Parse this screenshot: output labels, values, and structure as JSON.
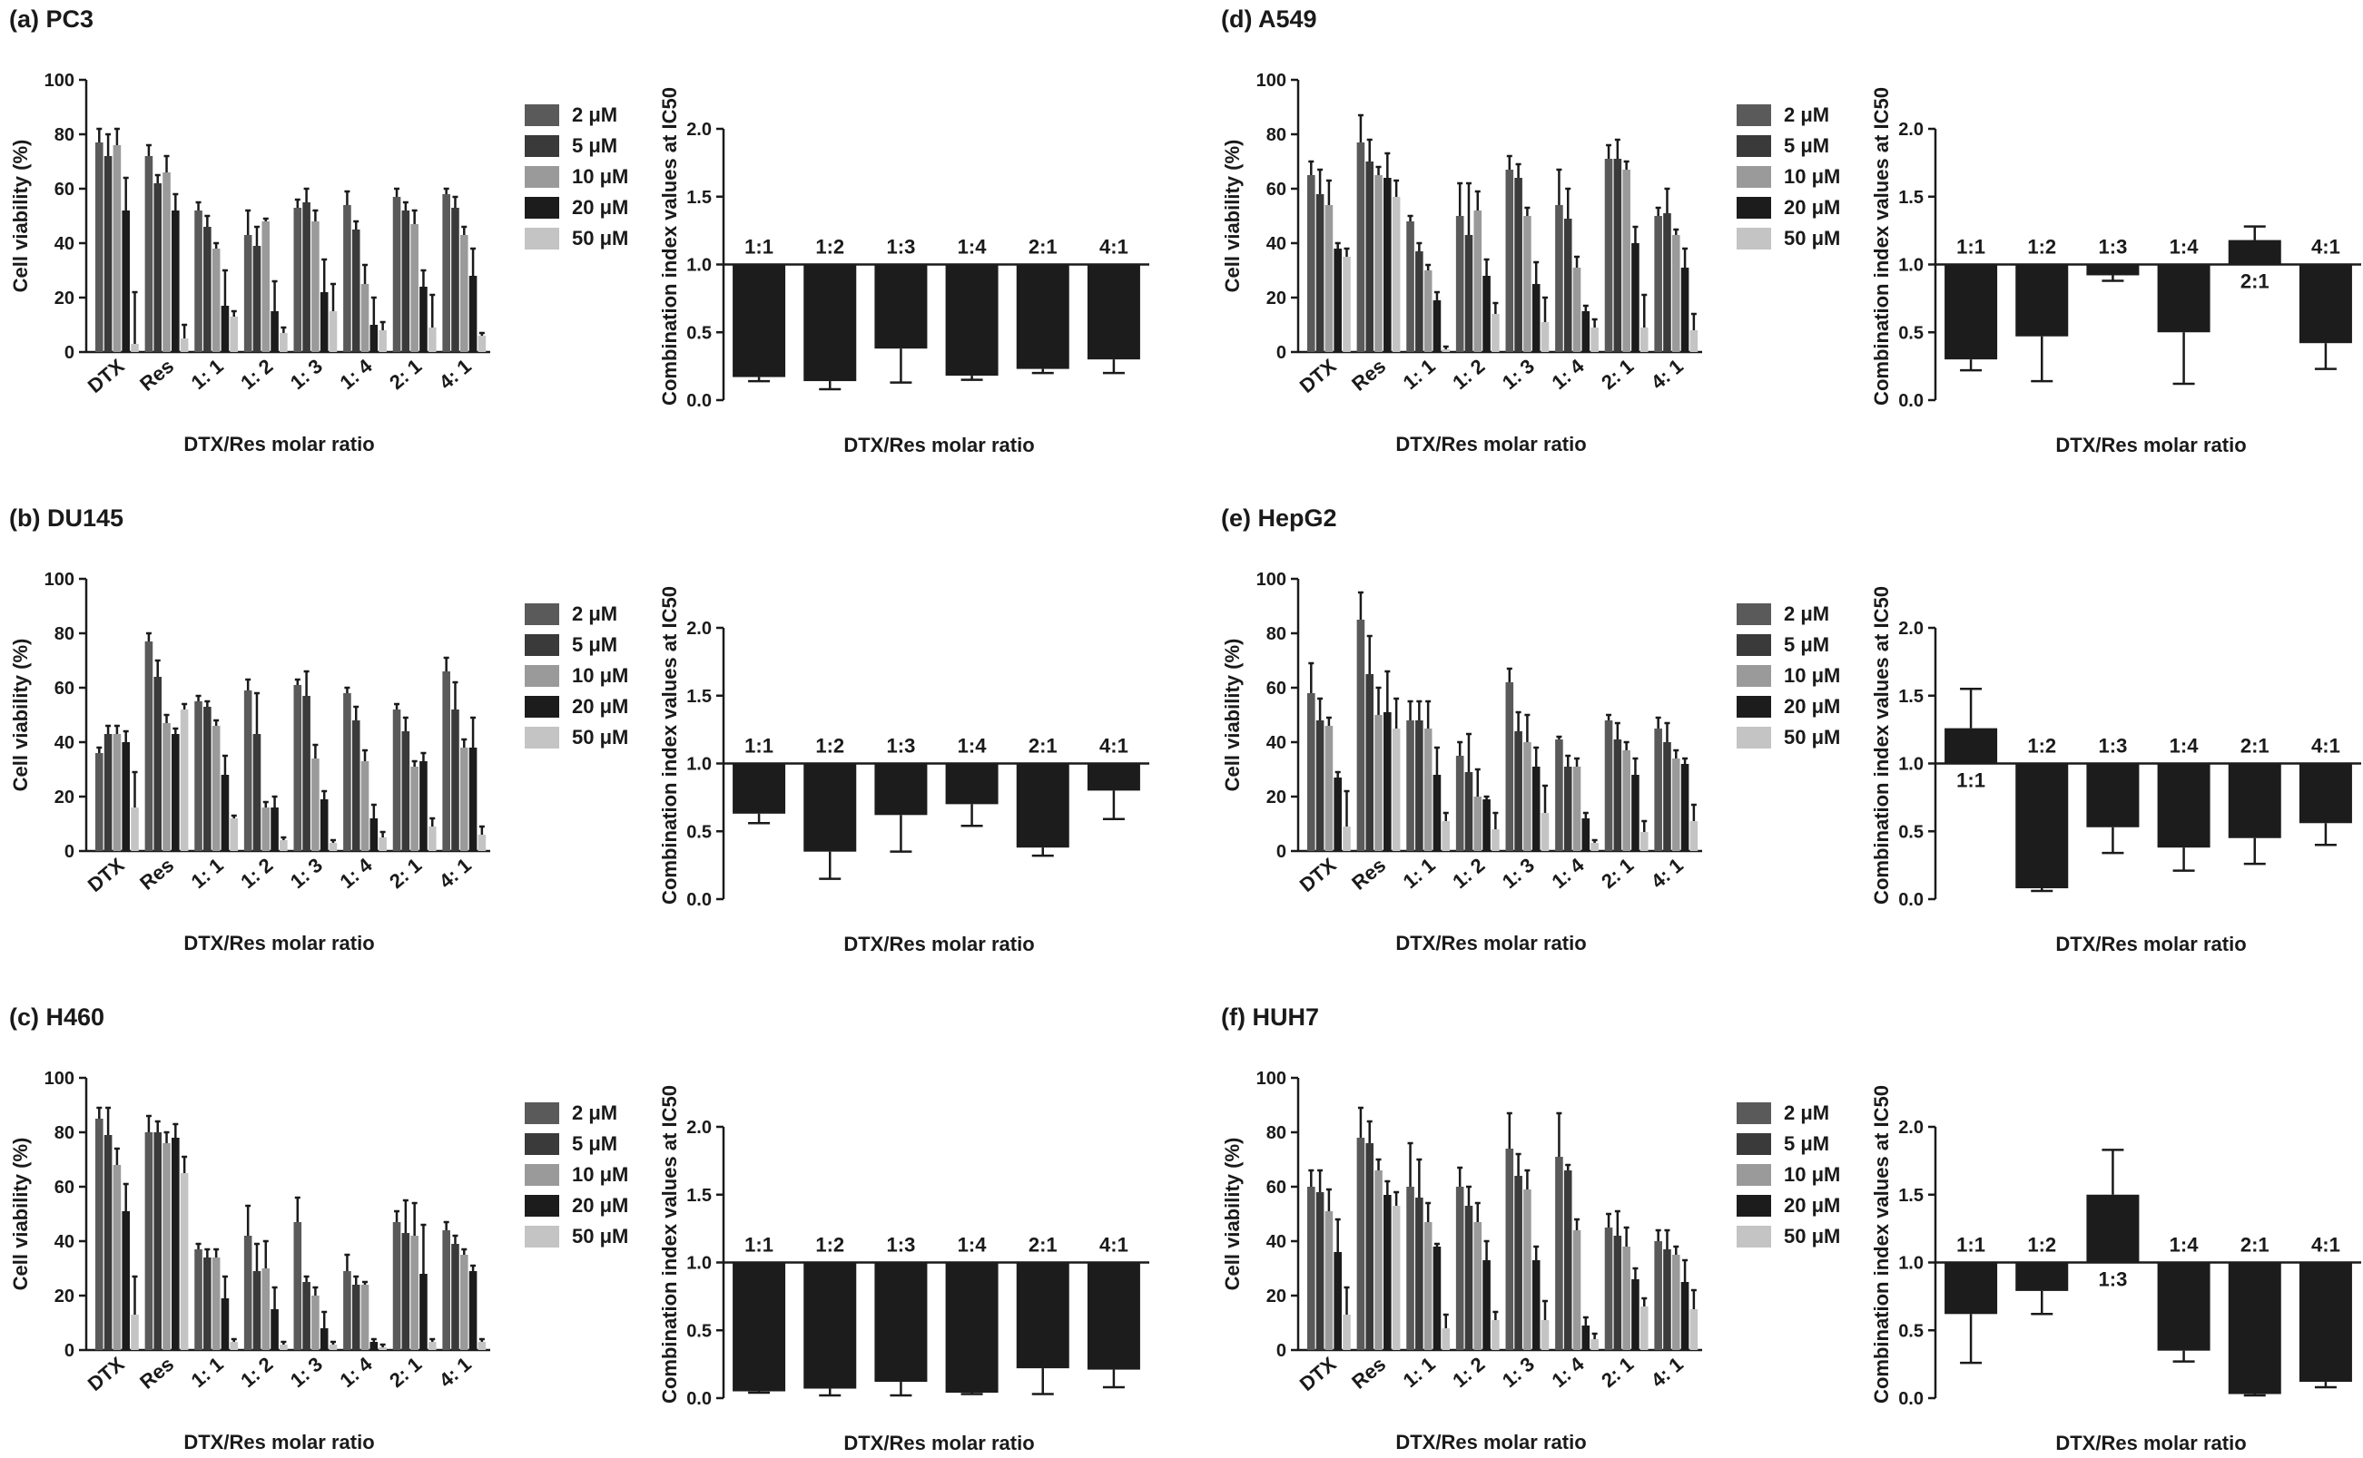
{
  "figure": {
    "series_names": [
      "2 μM",
      "5 μM",
      "10 μM",
      "20 μM",
      "50 μM"
    ],
    "series_colors": [
      "#5a5a5a",
      "#3a3a3a",
      "#9a9a9a",
      "#1c1c1c",
      "#c4c4c4"
    ],
    "ci_bar_color": "#1c1c1c"
  },
  "chart_data": [
    {
      "id": "PC3-viability",
      "type": "bar",
      "title": "(a) PC3",
      "xlabel": "DTX/Res molar ratio",
      "ylabel": "Cell viability (%)",
      "ylim": [
        0,
        100
      ],
      "yticks": [
        0,
        20,
        40,
        60,
        80,
        100
      ],
      "categories": [
        "DTX",
        "Res",
        "1: 1",
        "1: 2",
        "1: 3",
        "1: 4",
        "2: 1",
        "4: 1"
      ],
      "legend": "right",
      "series": [
        {
          "name": "2 μM",
          "values": [
            77,
            72,
            52,
            43,
            53,
            54,
            57,
            58
          ],
          "errors": [
            5,
            4,
            3,
            9,
            3,
            5,
            3,
            2
          ]
        },
        {
          "name": "5 μM",
          "values": [
            72,
            62,
            46,
            39,
            55,
            45,
            52,
            53
          ],
          "errors": [
            8,
            3,
            4,
            7,
            5,
            3,
            3,
            4
          ]
        },
        {
          "name": "10 μM",
          "values": [
            76,
            66,
            38,
            48,
            48,
            25,
            47,
            43
          ],
          "errors": [
            6,
            6,
            2,
            1,
            4,
            7,
            5,
            3
          ]
        },
        {
          "name": "20 μM",
          "values": [
            52,
            52,
            17,
            15,
            22,
            10,
            24,
            28
          ],
          "errors": [
            12,
            6,
            13,
            11,
            12,
            10,
            6,
            10
          ]
        },
        {
          "name": "50 μM",
          "values": [
            3,
            5,
            13,
            7,
            15,
            8,
            9,
            6
          ],
          "errors": [
            19,
            5,
            2,
            2,
            10,
            3,
            12,
            1
          ]
        }
      ]
    },
    {
      "id": "PC3-ci",
      "type": "bar",
      "xlabel": "DTX/Res molar ratio",
      "ylabel": "Combination index values at IC50",
      "ylim": [
        0,
        2
      ],
      "yticks": [
        0.0,
        0.5,
        1.0,
        1.5,
        2.0
      ],
      "baseline": 1.0,
      "categories": [
        "1:1",
        "1:2",
        "1:3",
        "1:4",
        "2:1",
        "4:1"
      ],
      "values": [
        0.17,
        0.14,
        0.38,
        0.18,
        0.23,
        0.3
      ],
      "errors": [
        0.03,
        0.06,
        0.25,
        0.03,
        0.03,
        0.1
      ]
    },
    {
      "id": "DU145-viability",
      "type": "bar",
      "title": "(b) DU145",
      "xlabel": "DTX/Res molar ratio",
      "ylabel": "Cell viability (%)",
      "ylim": [
        0,
        100
      ],
      "yticks": [
        0,
        20,
        40,
        60,
        80,
        100
      ],
      "categories": [
        "DTX",
        "Res",
        "1: 1",
        "1: 2",
        "1: 3",
        "1: 4",
        "2: 1",
        "4: 1"
      ],
      "legend": "right",
      "series": [
        {
          "name": "2 μM",
          "values": [
            36,
            77,
            55,
            59,
            61,
            58,
            52,
            66
          ],
          "errors": [
            2,
            3,
            2,
            4,
            2,
            2,
            2,
            5
          ]
        },
        {
          "name": "5 μM",
          "values": [
            43,
            64,
            53,
            43,
            57,
            48,
            44,
            52
          ],
          "errors": [
            3,
            6,
            2,
            15,
            9,
            5,
            5,
            10
          ]
        },
        {
          "name": "10 μM",
          "values": [
            43,
            47,
            46,
            16,
            34,
            33,
            31,
            38
          ],
          "errors": [
            3,
            3,
            2,
            2,
            5,
            4,
            2,
            3
          ]
        },
        {
          "name": "20 μM",
          "values": [
            40,
            43,
            28,
            16,
            19,
            12,
            33,
            38
          ],
          "errors": [
            4,
            2,
            7,
            4,
            3,
            5,
            3,
            11
          ]
        },
        {
          "name": "50 μM",
          "values": [
            16,
            52,
            12,
            4,
            3,
            5,
            9,
            6
          ],
          "errors": [
            13,
            2,
            1,
            1,
            1,
            2,
            3,
            3
          ]
        }
      ]
    },
    {
      "id": "DU145-ci",
      "type": "bar",
      "xlabel": "DTX/Res molar ratio",
      "ylabel": "Combination index values at IC50",
      "ylim": [
        0,
        2
      ],
      "yticks": [
        0.0,
        0.5,
        1.0,
        1.5,
        2.0
      ],
      "baseline": 1.0,
      "categories": [
        "1:1",
        "1:2",
        "1:3",
        "1:4",
        "2:1",
        "4:1"
      ],
      "values": [
        0.63,
        0.35,
        0.62,
        0.7,
        0.38,
        0.8
      ],
      "errors": [
        0.07,
        0.2,
        0.27,
        0.16,
        0.06,
        0.21
      ]
    },
    {
      "id": "H460-viability",
      "type": "bar",
      "title": "(c) H460",
      "xlabel": "DTX/Res molar ratio",
      "ylabel": "Cell viability (%)",
      "ylim": [
        0,
        100
      ],
      "yticks": [
        0,
        20,
        40,
        60,
        80,
        100
      ],
      "categories": [
        "DTX",
        "Res",
        "1: 1",
        "1: 2",
        "1: 3",
        "1: 4",
        "2: 1",
        "4: 1"
      ],
      "legend": "right",
      "series": [
        {
          "name": "2 μM",
          "values": [
            85,
            80,
            37,
            42,
            47,
            29,
            47,
            44
          ],
          "errors": [
            4,
            6,
            2,
            11,
            9,
            6,
            4,
            3
          ]
        },
        {
          "name": "5 μM",
          "values": [
            79,
            80,
            34,
            29,
            25,
            24,
            43,
            39
          ],
          "errors": [
            10,
            4,
            3,
            10,
            2,
            3,
            12,
            3
          ]
        },
        {
          "name": "10 μM",
          "values": [
            68,
            76,
            34,
            30,
            20,
            24,
            42,
            35
          ],
          "errors": [
            6,
            4,
            3,
            10,
            3,
            1,
            12,
            2
          ]
        },
        {
          "name": "20 μM",
          "values": [
            51,
            78,
            19,
            15,
            8,
            3,
            28,
            29
          ],
          "errors": [
            10,
            5,
            8,
            8,
            6,
            1,
            18,
            2
          ]
        },
        {
          "name": "50 μM",
          "values": [
            13,
            65,
            3,
            2,
            2,
            1,
            3,
            3
          ],
          "errors": [
            14,
            6,
            1,
            1,
            1,
            1,
            1,
            1
          ]
        }
      ]
    },
    {
      "id": "H460-ci",
      "type": "bar",
      "xlabel": "DTX/Res molar ratio",
      "ylabel": "Combination index values at IC50",
      "ylim": [
        0,
        2
      ],
      "yticks": [
        0.0,
        0.5,
        1.0,
        1.5,
        2.0
      ],
      "baseline": 1.0,
      "categories": [
        "1:1",
        "1:2",
        "1:3",
        "1:4",
        "2:1",
        "4:1"
      ],
      "values": [
        0.05,
        0.07,
        0.12,
        0.04,
        0.22,
        0.21
      ],
      "errors": [
        0.01,
        0.05,
        0.1,
        0.01,
        0.19,
        0.13
      ]
    },
    {
      "id": "A549-viability",
      "type": "bar",
      "title": "(d) A549",
      "xlabel": "DTX/Res molar ratio",
      "ylabel": "Cell viability (%)",
      "ylim": [
        0,
        100
      ],
      "yticks": [
        0,
        20,
        40,
        60,
        80,
        100
      ],
      "categories": [
        "DTX",
        "Res",
        "1: 1",
        "1: 2",
        "1: 3",
        "1: 4",
        "2: 1",
        "4: 1"
      ],
      "legend": "right",
      "series": [
        {
          "name": "2 μM",
          "values": [
            65,
            77,
            48,
            50,
            67,
            54,
            71,
            50
          ],
          "errors": [
            5,
            10,
            2,
            12,
            5,
            13,
            5,
            3
          ]
        },
        {
          "name": "5 μM",
          "values": [
            58,
            70,
            37,
            43,
            64,
            49,
            71,
            51
          ],
          "errors": [
            9,
            8,
            3,
            19,
            5,
            11,
            7,
            9
          ]
        },
        {
          "name": "10 μM",
          "values": [
            54,
            65,
            30,
            52,
            50,
            31,
            67,
            43
          ],
          "errors": [
            9,
            3,
            2,
            7,
            3,
            4,
            3,
            2
          ]
        },
        {
          "name": "20 μM",
          "values": [
            38,
            64,
            19,
            28,
            25,
            15,
            40,
            31
          ],
          "errors": [
            2,
            9,
            3,
            6,
            8,
            2,
            6,
            7
          ]
        },
        {
          "name": "50 μM",
          "values": [
            35,
            57,
            1,
            14,
            11,
            9,
            9,
            8
          ],
          "errors": [
            3,
            6,
            1,
            4,
            9,
            3,
            12,
            6
          ]
        }
      ]
    },
    {
      "id": "A549-ci",
      "type": "bar",
      "xlabel": "DTX/Res molar ratio",
      "ylabel": "Combination index values at IC50",
      "ylim": [
        0,
        2
      ],
      "yticks": [
        0.0,
        0.5,
        1.0,
        1.5,
        2.0
      ],
      "baseline": 1.0,
      "categories": [
        "1:1",
        "1:2",
        "1:3",
        "1:4",
        "2:1",
        "4:1"
      ],
      "values": [
        0.3,
        0.47,
        0.92,
        0.5,
        1.18,
        0.42
      ],
      "errors": [
        0.08,
        0.33,
        0.04,
        0.38,
        0.1,
        0.19
      ]
    },
    {
      "id": "HepG2-viability",
      "type": "bar",
      "title": "(e) HepG2",
      "xlabel": "DTX/Res molar ratio",
      "ylabel": "Cell viability (%)",
      "ylim": [
        0,
        100
      ],
      "yticks": [
        0,
        20,
        40,
        60,
        80,
        100
      ],
      "categories": [
        "DTX",
        "Res",
        "1: 1",
        "1: 2",
        "1: 3",
        "1: 4",
        "2: 1",
        "4: 1"
      ],
      "legend": "right",
      "series": [
        {
          "name": "2 μM",
          "values": [
            58,
            85,
            48,
            35,
            62,
            41,
            48,
            45
          ],
          "errors": [
            11,
            10,
            7,
            5,
            5,
            1,
            2,
            4
          ]
        },
        {
          "name": "5 μM",
          "values": [
            48,
            65,
            48,
            29,
            44,
            31,
            41,
            40
          ],
          "errors": [
            8,
            14,
            7,
            14,
            7,
            4,
            6,
            7
          ]
        },
        {
          "name": "10 μM",
          "values": [
            46,
            50,
            45,
            20,
            40,
            31,
            37,
            34
          ],
          "errors": [
            3,
            10,
            10,
            10,
            10,
            3,
            3,
            3
          ]
        },
        {
          "name": "20 μM",
          "values": [
            27,
            51,
            28,
            19,
            31,
            12,
            28,
            32
          ],
          "errors": [
            2,
            15,
            10,
            1,
            7,
            2,
            6,
            2
          ]
        },
        {
          "name": "50 μM",
          "values": [
            9,
            45,
            11,
            8,
            14,
            3,
            7,
            11
          ],
          "errors": [
            13,
            11,
            3,
            6,
            10,
            1,
            4,
            6
          ]
        }
      ]
    },
    {
      "id": "HepG2-ci",
      "type": "bar",
      "xlabel": "DTX/Res molar ratio",
      "ylabel": "Combination index values at IC50",
      "ylim": [
        0,
        2
      ],
      "yticks": [
        0.0,
        0.5,
        1.0,
        1.5,
        2.0
      ],
      "baseline": 1.0,
      "categories": [
        "1:1",
        "1:2",
        "1:3",
        "1:4",
        "2:1",
        "4:1"
      ],
      "values": [
        1.26,
        0.08,
        0.53,
        0.38,
        0.45,
        0.56
      ],
      "errors": [
        0.29,
        0.02,
        0.19,
        0.17,
        0.19,
        0.16
      ]
    },
    {
      "id": "HUH7-viability",
      "type": "bar",
      "title": "(f) HUH7",
      "xlabel": "DTX/Res molar ratio",
      "ylabel": "Cell viability (%)",
      "ylim": [
        0,
        100
      ],
      "yticks": [
        0,
        20,
        40,
        60,
        80,
        100
      ],
      "categories": [
        "DTX",
        "Res",
        "1: 1",
        "1: 2",
        "1: 3",
        "1: 4",
        "2: 1",
        "4: 1"
      ],
      "legend": "right",
      "series": [
        {
          "name": "2 μM",
          "values": [
            60,
            78,
            60,
            60,
            74,
            71,
            45,
            40
          ],
          "errors": [
            6,
            11,
            16,
            7,
            13,
            16,
            5,
            4
          ]
        },
        {
          "name": "5 μM",
          "values": [
            58,
            76,
            56,
            53,
            64,
            66,
            42,
            37
          ],
          "errors": [
            8,
            8,
            14,
            7,
            8,
            2,
            9,
            7
          ]
        },
        {
          "name": "10 μM",
          "values": [
            51,
            66,
            47,
            47,
            59,
            44,
            38,
            35
          ],
          "errors": [
            8,
            4,
            7,
            7,
            7,
            4,
            7,
            3
          ]
        },
        {
          "name": "20 μM",
          "values": [
            36,
            57,
            38,
            33,
            33,
            9,
            26,
            25
          ],
          "errors": [
            12,
            5,
            1,
            7,
            5,
            3,
            4,
            8
          ]
        },
        {
          "name": "50 μM",
          "values": [
            13,
            53,
            8,
            11,
            11,
            4,
            16,
            15
          ],
          "errors": [
            10,
            5,
            5,
            3,
            7,
            2,
            3,
            7
          ]
        }
      ]
    },
    {
      "id": "HUH7-ci",
      "type": "bar",
      "xlabel": "DTX/Res molar ratio",
      "ylabel": "Combination index values at IC50",
      "ylim": [
        0,
        2
      ],
      "yticks": [
        0.0,
        0.5,
        1.0,
        1.5,
        2.0
      ],
      "baseline": 1.0,
      "categories": [
        "1:1",
        "1:2",
        "1:3",
        "1:4",
        "2:1",
        "4:1"
      ],
      "values": [
        0.62,
        0.79,
        1.5,
        0.35,
        0.03,
        0.12
      ],
      "errors": [
        0.36,
        0.17,
        0.33,
        0.08,
        0.01,
        0.04
      ]
    }
  ]
}
